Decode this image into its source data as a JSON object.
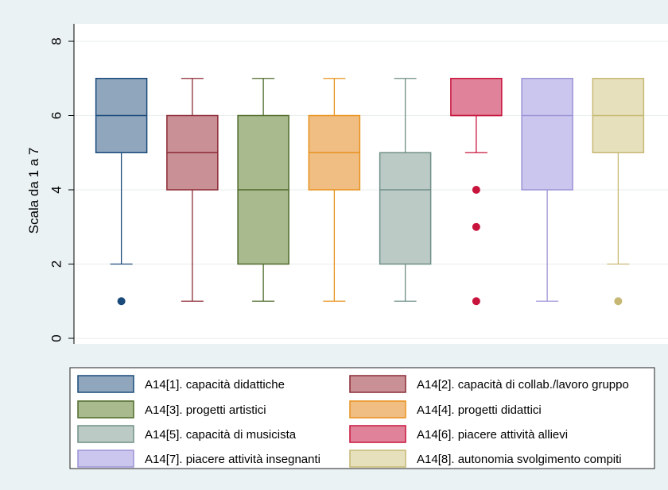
{
  "chart_data": {
    "type": "box",
    "title": "",
    "ylabel": "Scala da 1 a 7",
    "ylim": [
      0,
      8
    ],
    "yticks": [
      "0",
      "2",
      "4",
      "6",
      "8"
    ],
    "grid": true,
    "legend_position": "bottom",
    "series": [
      {
        "name": "A14[1]. capacità didattiche",
        "min": 2,
        "q1": 5,
        "median": 6,
        "q3": 7,
        "max": 7,
        "outliers": [
          1
        ],
        "color": "#8fa6bd",
        "stroke": "#1a4a7a"
      },
      {
        "name": "A14[2]. capacità di collab./lavoro gruppo",
        "min": 1,
        "q1": 4,
        "median": 5,
        "q3": 6,
        "max": 7,
        "outliers": [],
        "color": "#c99196",
        "stroke": "#8b2a35"
      },
      {
        "name": "A14[3]. progetti artistici",
        "min": 1,
        "q1": 2,
        "median": 4,
        "q3": 6,
        "max": 7,
        "outliers": [],
        "color": "#a9bb8e",
        "stroke": "#4e6a2a"
      },
      {
        "name": "A14[4]. progetti didattici",
        "min": 1,
        "q1": 4,
        "median": 5,
        "q3": 6,
        "max": 7,
        "outliers": [],
        "color": "#f0bd82",
        "stroke": "#e8921e"
      },
      {
        "name": "A14[5]. capacità di musicista",
        "min": 1,
        "q1": 2,
        "median": 4,
        "q3": 5,
        "max": 7,
        "outliers": [],
        "color": "#bccac5",
        "stroke": "#6e8f86"
      },
      {
        "name": "A14[6]. piacere attività allievi",
        "min": 5,
        "q1": 6,
        "median": 6,
        "q3": 7,
        "max": 7,
        "outliers": [
          4,
          3,
          1
        ],
        "color": "#e0839a",
        "stroke": "#c8143c"
      },
      {
        "name": "A14[7]. piacere attività insegnanti",
        "min": 1,
        "q1": 4,
        "median": 6,
        "q3": 7,
        "max": 7,
        "outliers": [],
        "color": "#cbc6ee",
        "stroke": "#9b93d6"
      },
      {
        "name": "A14[8]. autonomia svolgimento compiti",
        "min": 2,
        "q1": 5,
        "median": 6,
        "q3": 7,
        "max": 7,
        "outliers": [
          1
        ],
        "color": "#e6e0bd",
        "stroke": "#c6b874"
      }
    ]
  }
}
